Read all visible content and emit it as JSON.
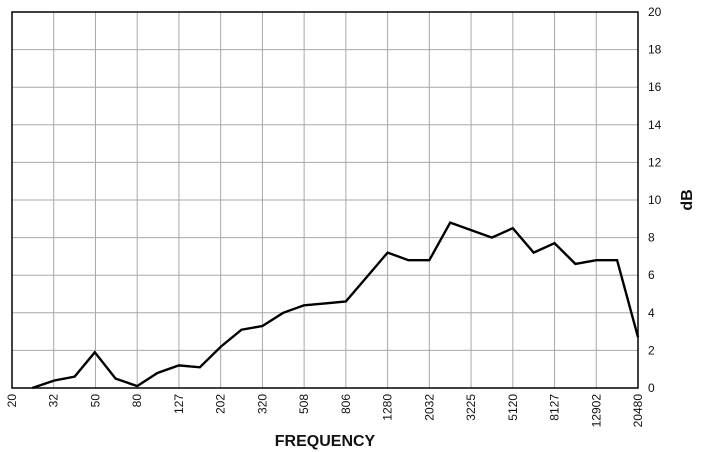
{
  "chart_data": {
    "type": "line",
    "title": "",
    "xlabel": "FREQUENCY",
    "ylabel": "dB",
    "x_tick_labels": [
      "20",
      "32",
      "50",
      "80",
      "127",
      "202",
      "320",
      "508",
      "806",
      "1280",
      "2032",
      "3225",
      "5120",
      "8127",
      "12902",
      "20480"
    ],
    "y_ticks": [
      0,
      2,
      4,
      6,
      8,
      10,
      12,
      14,
      16,
      18,
      20
    ],
    "ylim": [
      0,
      20
    ],
    "y_axis_side": "right",
    "grid": true,
    "x_scale": "log",
    "series": [
      {
        "values": [
          {
            "x": 25,
            "y": 0
          },
          {
            "x": 32,
            "y": 0.4
          },
          {
            "x": 40,
            "y": 0.6
          },
          {
            "x": 50,
            "y": 1.9
          },
          {
            "x": 63,
            "y": 0.5
          },
          {
            "x": 80,
            "y": 0.1
          },
          {
            "x": 100,
            "y": 0.8
          },
          {
            "x": 127,
            "y": 1.2
          },
          {
            "x": 160,
            "y": 1.1
          },
          {
            "x": 202,
            "y": 2.2
          },
          {
            "x": 254,
            "y": 3.1
          },
          {
            "x": 320,
            "y": 3.3
          },
          {
            "x": 403,
            "y": 4.0
          },
          {
            "x": 508,
            "y": 4.4
          },
          {
            "x": 640,
            "y": 4.5
          },
          {
            "x": 806,
            "y": 4.6
          },
          {
            "x": 1016,
            "y": 5.9
          },
          {
            "x": 1280,
            "y": 7.2
          },
          {
            "x": 1613,
            "y": 6.8
          },
          {
            "x": 2032,
            "y": 6.8
          },
          {
            "x": 2560,
            "y": 8.8
          },
          {
            "x": 3225,
            "y": 8.4
          },
          {
            "x": 4064,
            "y": 8.0
          },
          {
            "x": 5120,
            "y": 8.5
          },
          {
            "x": 6451,
            "y": 7.2
          },
          {
            "x": 8127,
            "y": 7.7
          },
          {
            "x": 10240,
            "y": 6.6
          },
          {
            "x": 12902,
            "y": 6.8
          },
          {
            "x": 16255,
            "y": 6.8
          },
          {
            "x": 20480,
            "y": 2.7
          }
        ]
      }
    ],
    "colors": {
      "line": "#000000",
      "grid": "#a8a8a8",
      "frame": "#000000"
    }
  }
}
